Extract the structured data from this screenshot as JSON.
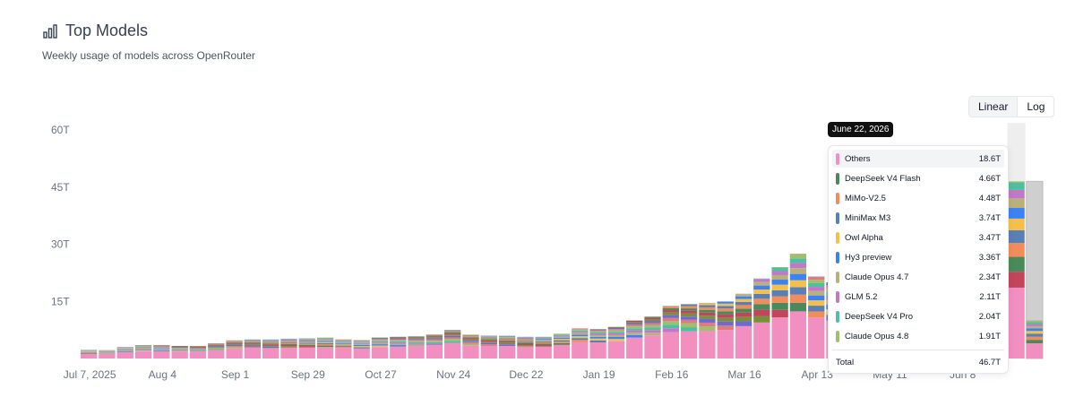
{
  "header": {
    "title": "Top Models",
    "subtitle": "Weekly usage of models across OpenRouter",
    "icon": "bar-chart-icon"
  },
  "scale_toggle": {
    "linear_label": "Linear",
    "log_label": "Log",
    "selected": "Linear"
  },
  "tooltip": {
    "date": "June 22, 2026",
    "rows": [
      {
        "name": "Others",
        "value": "18.6T",
        "color": "#f08fc0"
      },
      {
        "name": "DeepSeek V4 Flash",
        "value": "4.66T",
        "color": "#4a8a5a"
      },
      {
        "name": "MiMo-V2.5",
        "value": "4.48T",
        "color": "#f28c5a"
      },
      {
        "name": "MiniMax M3",
        "value": "3.74T",
        "color": "#5a7fb5"
      },
      {
        "name": "Owl Alpha",
        "value": "3.47T",
        "color": "#f5c04a"
      },
      {
        "name": "Hy3 preview",
        "value": "3.36T",
        "color": "#3b82f6"
      },
      {
        "name": "Claude Opus 4.7",
        "value": "2.34T",
        "color": "#b8b27a"
      },
      {
        "name": "GLM 5.2",
        "value": "2.11T",
        "color": "#c278c8"
      },
      {
        "name": "DeepSeek V4 Pro",
        "value": "2.04T",
        "color": "#4fbf9f"
      },
      {
        "name": "Claude Opus 4.8",
        "value": "1.91T",
        "color": "#9bc26a"
      }
    ],
    "total_label": "Total",
    "total_value": "46.7T"
  },
  "chart_data": {
    "type": "bar",
    "stacked": true,
    "y_ticks": [
      "60T",
      "45T",
      "30T",
      "15T"
    ],
    "y_tick_values": [
      60,
      45,
      30,
      15
    ],
    "ylim": [
      0,
      60
    ],
    "x_ticks": [
      "Jul 7, 2025",
      "Aug 4",
      "Sep 1",
      "Sep 29",
      "Oct 27",
      "Nov 24",
      "Dec 22",
      "Jan 19",
      "Feb 16",
      "Mar 16",
      "Apr 13",
      "May 11",
      "Jun 8"
    ],
    "x_tick_indices": [
      0,
      4,
      8,
      12,
      16,
      20,
      24,
      28,
      32,
      36,
      40,
      44,
      48
    ],
    "grid": false,
    "totals": [
      2.3,
      2.2,
      3.0,
      3.5,
      3.5,
      3.3,
      3.3,
      4.0,
      4.8,
      5.0,
      5.0,
      5.2,
      5.3,
      5.5,
      5.0,
      4.8,
      5.5,
      5.7,
      5.8,
      6.3,
      7.5,
      6.3,
      6.0,
      6.0,
      5.7,
      5.7,
      6.5,
      7.9,
      7.7,
      8.3,
      10.0,
      11.0,
      13.8,
      14.3,
      14.6,
      15.0,
      17.0,
      21.0,
      24.0,
      27.5,
      21.5,
      20.0,
      19.0,
      20.0,
      22.0,
      24.0,
      27.0,
      32.0,
      36.0,
      40.0,
      46.7,
      46.5,
      10.0
    ],
    "others_fraction": [
      0.55,
      0.55,
      0.55,
      0.55,
      0.55,
      0.55,
      0.55,
      0.55,
      0.55,
      0.55,
      0.55,
      0.55,
      0.55,
      0.55,
      0.55,
      0.55,
      0.55,
      0.55,
      0.55,
      0.55,
      0.55,
      0.55,
      0.55,
      0.55,
      0.55,
      0.55,
      0.55,
      0.55,
      0.55,
      0.55,
      0.55,
      0.55,
      0.5,
      0.5,
      0.5,
      0.5,
      0.5,
      0.45,
      0.45,
      0.45,
      0.5,
      0.5,
      0.5,
      0.45,
      0.45,
      0.45,
      0.45,
      0.4,
      0.4,
      0.4,
      0.4,
      0.4,
      0.4
    ],
    "segment_colors": [
      "#f08fc0",
      "#c2455c",
      "#4a8a5a",
      "#f28c5a",
      "#5a7fb5",
      "#f5c04a",
      "#3b82f6",
      "#b8b27a",
      "#c278c8",
      "#4fbf9f",
      "#9bc26a",
      "#e07b7b",
      "#6d6ad6",
      "#7a8f3c"
    ],
    "highlighted_week": "June 22, 2026",
    "highlighted_index": 51,
    "partial_index": 52
  }
}
